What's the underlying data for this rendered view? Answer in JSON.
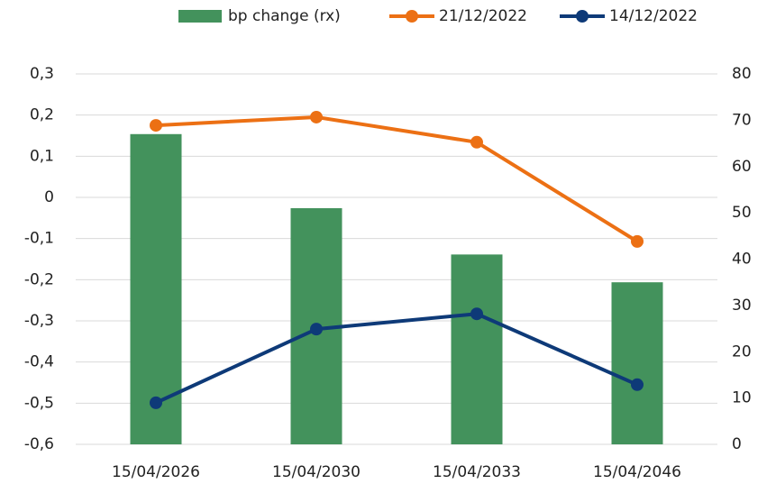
{
  "chart_data": {
    "type": "bar",
    "categories": [
      "15/04/2026",
      "15/04/2030",
      "15/04/2033",
      "15/04/2046"
    ],
    "series": [
      {
        "name": "bp change (rx)",
        "type": "bar",
        "axis": "y2",
        "color": "#43925c",
        "values": [
          67,
          51,
          41,
          35
        ]
      },
      {
        "name": "21/12/2022",
        "type": "line",
        "color": "#ec7014",
        "values": [
          0.175,
          0.195,
          0.134,
          -0.107
        ]
      },
      {
        "name": "14/12/2022",
        "type": "line",
        "color": "#0e3a78",
        "values": [
          -0.499,
          -0.32,
          -0.283,
          -0.455
        ]
      }
    ],
    "ylim": [
      -0.6,
      0.3
    ],
    "yticks": [
      {
        "value": -0.6,
        "label": "-0,6"
      },
      {
        "value": -0.5,
        "label": "-0,5"
      },
      {
        "value": -0.4,
        "label": "-0,4"
      },
      {
        "value": -0.3,
        "label": "-0,3"
      },
      {
        "value": -0.2,
        "label": "-0,2"
      },
      {
        "value": -0.1,
        "label": "-0,1"
      },
      0,
      {
        "value": 0.1,
        "label": "0,1"
      },
      {
        "value": 0.2,
        "label": "0,2"
      },
      {
        "value": 0.3,
        "label": "0,3"
      }
    ],
    "y2lim": [
      0,
      80
    ],
    "y2ticks": [
      0,
      10,
      20,
      30,
      40,
      50,
      60,
      70,
      80
    ],
    "grid": true,
    "legend": "top-right"
  }
}
